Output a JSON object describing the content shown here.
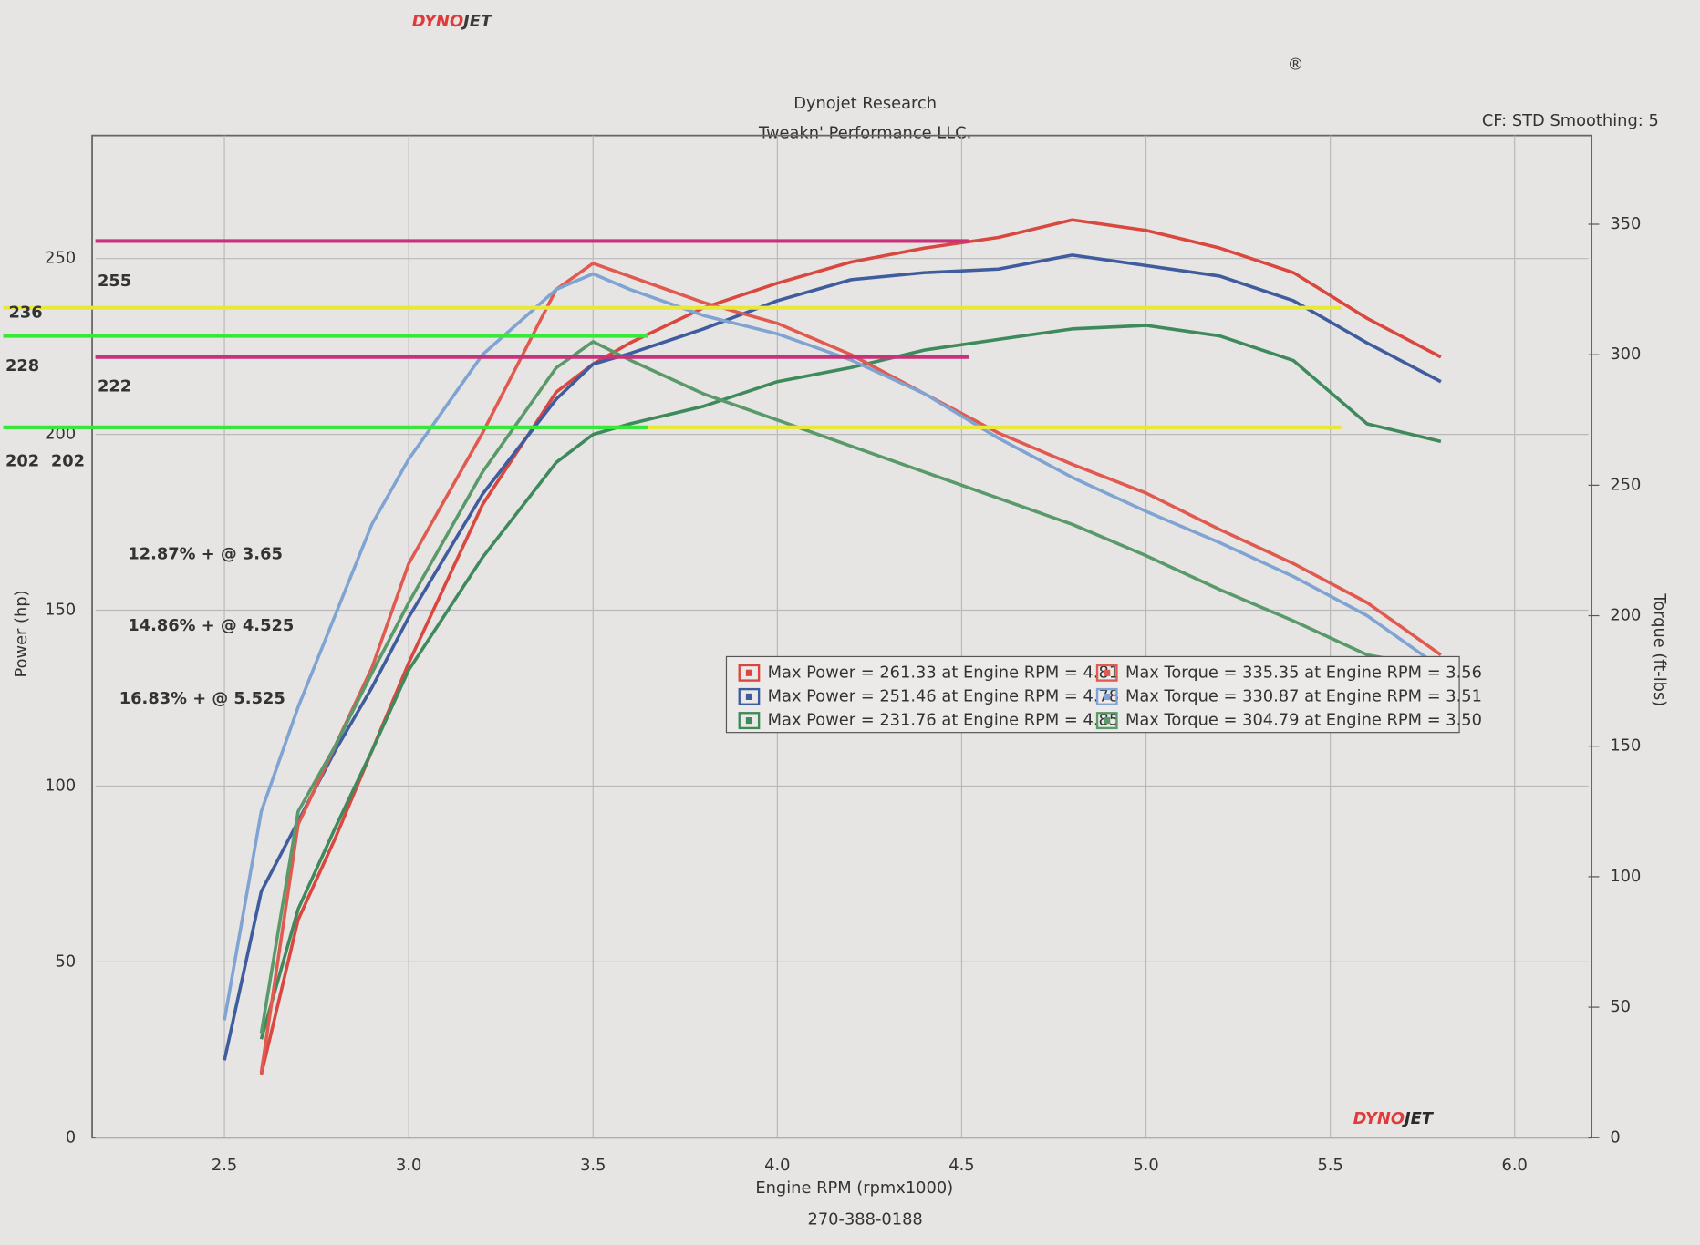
{
  "chart_data": {
    "type": "line",
    "logo": [
      "DYNO",
      "JET"
    ],
    "registered": "®",
    "title": "Dynojet Research",
    "subtitle": "Tweakn' Performance LLC.",
    "settings_text": "CF: STD Smoothing: 5",
    "x_label": "Engine RPM (rpmx1000)",
    "y_label": "Power (hp)",
    "y2_label": "Torque (ft-lbs)",
    "footer": "270-388-0188",
    "xlim": [
      2.15,
      6.2
    ],
    "ylim": [
      0,
      285
    ],
    "y2lim": [
      0,
      384
    ],
    "xticks": [
      2.5,
      {
        "value": 3,
        "label": "3.0"
      },
      3.5,
      {
        "value": 4,
        "label": "4.0"
      },
      4.5,
      {
        "value": 5,
        "label": "5.0"
      },
      5.5,
      {
        "value": 6,
        "label": "6.0"
      }
    ],
    "yticks": [
      0,
      50,
      100,
      150,
      200,
      250
    ],
    "y2ticks": [
      0,
      50,
      100,
      150,
      200,
      250,
      300,
      350
    ],
    "grid": true,
    "x": [
      2.5,
      2.6,
      2.7,
      2.8,
      2.9,
      3.0,
      3.2,
      3.4,
      3.5,
      3.6,
      3.8,
      4.0,
      4.2,
      4.4,
      4.6,
      4.8,
      5.0,
      5.2,
      5.4,
      5.6,
      5.8
    ],
    "series": [
      {
        "name": "Max Power = 261.33 at Engine RPM = 4.81",
        "color": "#d9473f",
        "values": [
          null,
          18,
          62,
          85,
          110,
          135,
          180,
          212,
          220,
          226,
          236,
          243,
          249,
          253,
          256,
          261,
          258,
          253,
          246,
          233,
          222
        ]
      },
      {
        "name": "Max Power = 251.46 at Engine RPM = 4.78",
        "color": "#3f5c9e",
        "values": [
          22,
          70,
          90,
          110,
          128,
          148,
          183,
          210,
          220,
          223,
          230,
          238,
          244,
          246,
          247,
          251,
          248,
          245,
          238,
          226,
          215
        ]
      },
      {
        "name": "Max Power = 231.76 at Engine RPM = 4.85",
        "color": "#3f8a5c",
        "values": [
          null,
          28,
          65,
          88,
          110,
          133,
          165,
          192,
          200,
          203,
          208,
          215,
          219,
          224,
          227,
          230,
          231,
          228,
          221,
          203,
          198
        ]
      },
      {
        "name": "Max Torque = 335.35 at Engine RPM = 3.56",
        "color": "#e05a50",
        "axis": "y2",
        "values": [
          null,
          25,
          120,
          150,
          180,
          220,
          270,
          325,
          335,
          330,
          320,
          312,
          300,
          285,
          270,
          258,
          247,
          233,
          220,
          205,
          185
        ]
      },
      {
        "name": "Max Torque = 330.87 at Engine RPM = 3.51",
        "color": "#7fa4d3",
        "axis": "y2",
        "values": [
          45,
          125,
          165,
          200,
          235,
          260,
          300,
          325,
          331,
          325,
          315,
          308,
          298,
          285,
          268,
          253,
          240,
          228,
          215,
          200,
          180
        ]
      },
      {
        "name": "Max Torque = 304.79 at Engine RPM = 3.50",
        "color": "#5a9a6a",
        "axis": "y2",
        "values": [
          null,
          40,
          125,
          150,
          178,
          205,
          255,
          295,
          305,
          298,
          285,
          275,
          265,
          255,
          245,
          235,
          223,
          210,
          198,
          185,
          180
        ]
      }
    ],
    "reference_lines": [
      {
        "value": 255,
        "x": [
          2.15,
          4.52
        ],
        "color": "#c8327a"
      },
      {
        "value": 236,
        "x": [
          1.9,
          5.53
        ],
        "color": "#e8e83a"
      },
      {
        "value": 228,
        "x": [
          1.9,
          3.65
        ],
        "color": "#38e838"
      },
      {
        "value": 222,
        "x": [
          2.15,
          4.52
        ],
        "color": "#c8327a"
      },
      {
        "value": 202,
        "x": [
          1.9,
          3.65
        ],
        "color": "#38e838"
      },
      {
        "value": 202,
        "x": [
          3.65,
          5.53
        ],
        "color": "#e8e83a"
      }
    ],
    "annotations": [
      {
        "text": "12.87% + @ 3.65",
        "color": "#7ee86a"
      },
      {
        "text": "14.86% + @ 4.525",
        "color": "#c8327a"
      },
      {
        "text": "16.83% + @ 5.525",
        "color": "#f5f07a"
      }
    ]
  }
}
